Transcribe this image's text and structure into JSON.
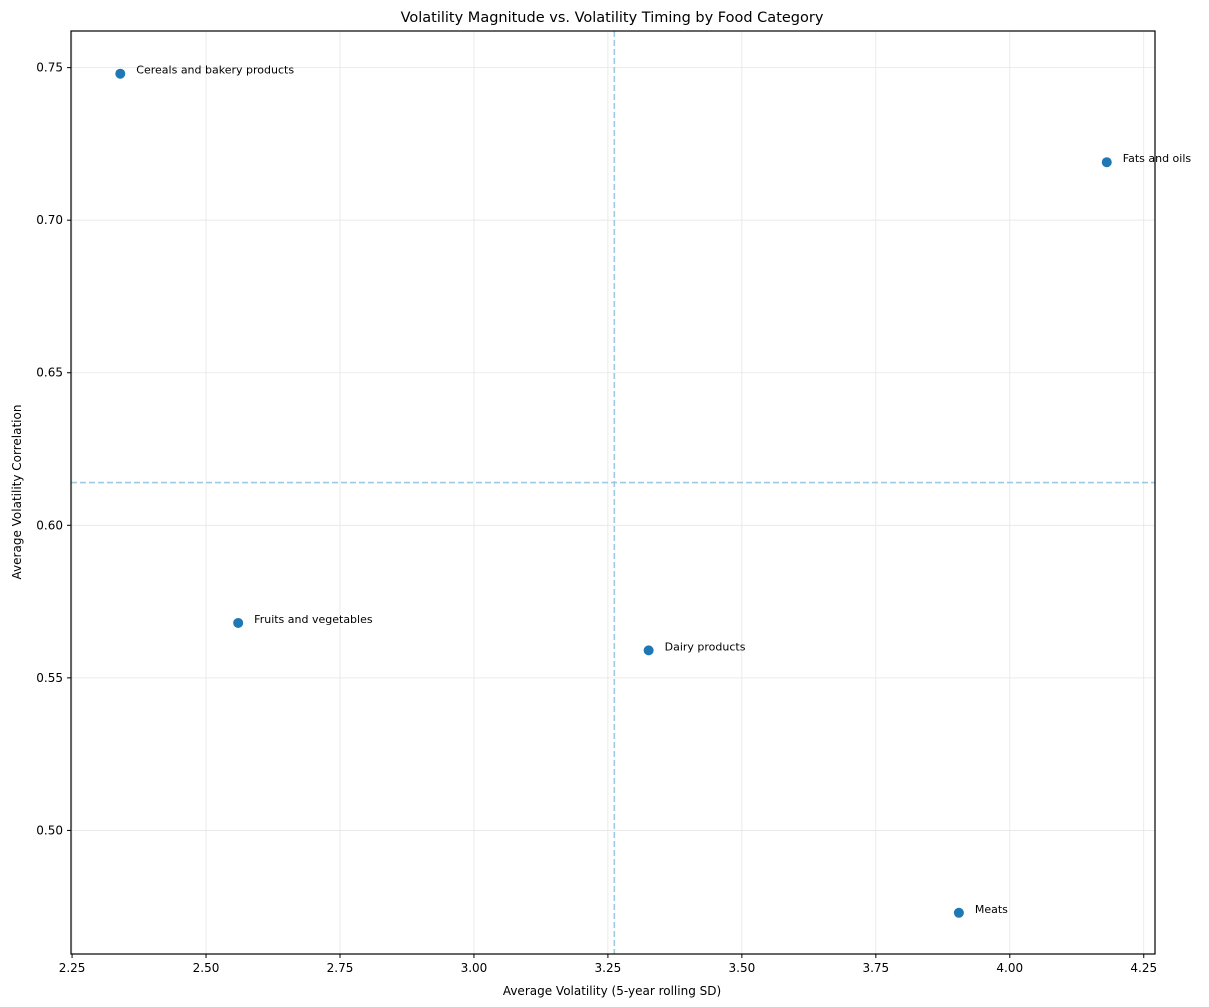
{
  "chart_data": {
    "type": "scatter",
    "title": "Volatility Magnitude vs. Volatility Timing by Food Category",
    "xlabel": "Average Volatility (5-year rolling SD)",
    "ylabel": "Average Volatility Correlation",
    "xlim": [
      2.248,
      4.271
    ],
    "ylim": [
      0.4595,
      0.762
    ],
    "xticks": [
      2.25,
      2.5,
      2.75,
      3.0,
      3.25,
      3.5,
      3.75,
      4.0,
      4.25
    ],
    "xtick_labels": [
      "2.25",
      "2.50",
      "2.75",
      "3.00",
      "3.25",
      "3.50",
      "3.75",
      "4.00",
      "4.25"
    ],
    "yticks": [
      0.5,
      0.55,
      0.6,
      0.65,
      0.7,
      0.75
    ],
    "ytick_labels": [
      "0.50",
      "0.55",
      "0.60",
      "0.65",
      "0.70",
      "0.75"
    ],
    "grid": true,
    "legend": null,
    "points": [
      {
        "label": "Cereals and bakery products",
        "x": 2.34,
        "y": 0.748
      },
      {
        "label": "Fats and oils",
        "x": 4.181,
        "y": 0.719
      },
      {
        "label": "Fruits and vegetables",
        "x": 2.56,
        "y": 0.568
      },
      {
        "label": "Dairy products",
        "x": 3.326,
        "y": 0.559
      },
      {
        "label": "Meats",
        "x": 3.905,
        "y": 0.473
      }
    ],
    "reference_lines": {
      "vertical_x_mean": 3.262,
      "horizontal_y_mean": 0.614,
      "style": "dashed"
    },
    "colors": {
      "point": "#1f77b4",
      "reference_line": "#9ecae1",
      "grid": "#e6e6e6",
      "axis": "#000000"
    }
  }
}
